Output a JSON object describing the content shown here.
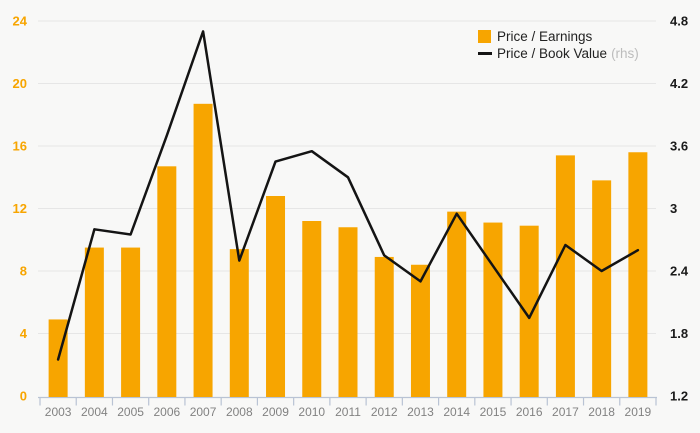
{
  "page": {
    "background": "#f8f8f7"
  },
  "legend": {
    "items": [
      {
        "label": "Price / Earnings",
        "suffix": "",
        "type": "bar",
        "color": "#F7A500"
      },
      {
        "label": "Price / Book Value",
        "suffix": "(rhs)",
        "type": "line",
        "color": "#141414"
      }
    ]
  },
  "chart_data": {
    "type": "bar+line",
    "title": "",
    "categories": [
      "2003",
      "2004",
      "2005",
      "2006",
      "2007",
      "2008",
      "2009",
      "2010",
      "2011",
      "2012",
      "2013",
      "2014",
      "2015",
      "2016",
      "2017",
      "2018",
      "2019"
    ],
    "series": [
      {
        "name": "Price / Earnings",
        "type": "bar",
        "axis": "left",
        "color": "#F7A500",
        "values": [
          4.9,
          9.5,
          9.5,
          14.7,
          18.7,
          9.4,
          12.8,
          11.2,
          10.8,
          8.9,
          8.4,
          11.8,
          11.1,
          10.9,
          15.4,
          13.8,
          15.6
        ]
      },
      {
        "name": "Price / Book Value (rhs)",
        "type": "line",
        "axis": "right",
        "color": "#141414",
        "values": [
          1.55,
          2.8,
          2.75,
          3.7,
          4.7,
          2.5,
          3.45,
          3.55,
          3.3,
          2.55,
          2.3,
          2.95,
          2.45,
          1.95,
          2.65,
          2.4,
          2.6
        ]
      }
    ],
    "left_axis": {
      "min": 0,
      "max": 24,
      "ticks": [
        0,
        4,
        8,
        12,
        16,
        20,
        24
      ],
      "label_color": "#F7A500"
    },
    "right_axis": {
      "min": 1.2,
      "max": 4.8,
      "ticks": [
        1.2,
        1.8,
        2.4,
        3,
        3.6,
        4.2,
        4.8
      ],
      "label_color": "#1a1a1a"
    },
    "x_axis": {
      "label_color": "#828282",
      "line_color": "#b9c3d4"
    },
    "grid": true,
    "grid_color": "#e6e6e6",
    "legend_position": "top-right"
  }
}
